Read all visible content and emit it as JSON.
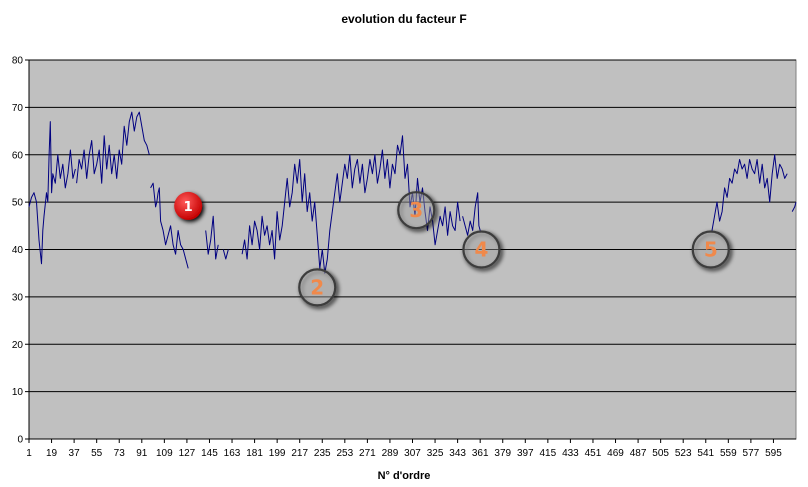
{
  "chart_data": {
    "type": "line",
    "title": "evolution du facteur F",
    "xlabel": "N° d'ordre",
    "ylabel": "",
    "ylim": [
      0,
      80
    ],
    "yticks": [
      0,
      10,
      20,
      30,
      40,
      50,
      60,
      70,
      80
    ],
    "xlim": [
      1,
      613
    ],
    "xticks": [
      1,
      19,
      37,
      55,
      73,
      91,
      109,
      127,
      145,
      163,
      181,
      199,
      217,
      235,
      253,
      271,
      289,
      307,
      325,
      343,
      361,
      379,
      397,
      415,
      433,
      451,
      469,
      487,
      505,
      523,
      541,
      559,
      577,
      595
    ],
    "grid": "horizontal",
    "legend": "none",
    "plot_background": "#c0c0c0",
    "line_color": "#000080",
    "segments": [
      {
        "x": [
          1,
          3,
          5,
          7,
          9,
          11,
          12,
          13,
          15,
          16,
          17,
          18,
          19,
          20,
          22,
          24,
          26,
          28,
          30,
          32,
          34,
          36,
          38
        ],
        "y": [
          49,
          51,
          52,
          50,
          42,
          37,
          44,
          47,
          52,
          50,
          60,
          67,
          52,
          56,
          54,
          60,
          55,
          58,
          53,
          56,
          61,
          55,
          57
        ]
      },
      {
        "x": [
          39,
          41,
          43,
          45,
          47,
          49,
          51,
          53,
          55,
          57,
          59,
          61,
          63,
          65,
          67,
          69,
          71,
          73,
          75,
          77,
          79,
          81,
          83,
          85,
          87,
          89,
          91,
          93,
          95,
          97
        ],
        "y": [
          54,
          59,
          57,
          61,
          55,
          60,
          63,
          56,
          58,
          61,
          54,
          64,
          57,
          62,
          56,
          60,
          55,
          61,
          58,
          66,
          62,
          67,
          69,
          65,
          68,
          69,
          66,
          63,
          62,
          60
        ]
      },
      {
        "x": [
          98,
          100,
          102,
          103,
          104,
          105,
          106,
          108,
          110,
          112,
          114,
          116,
          118,
          120,
          122,
          124,
          126,
          128
        ],
        "y": [
          53,
          54,
          49,
          50,
          52,
          53,
          46,
          44,
          41,
          43,
          45,
          41,
          39,
          44,
          41,
          40,
          38,
          36
        ]
      },
      {
        "x": [
          142,
          144,
          146,
          148,
          150,
          152
        ],
        "y": [
          44,
          39,
          42,
          47,
          38,
          41
        ]
      },
      {
        "x": [
          156,
          158,
          160
        ],
        "y": [
          40,
          38,
          40
        ]
      },
      {
        "x": [
          171,
          173,
          175,
          177,
          179,
          181,
          183,
          185,
          187,
          189,
          191,
          193,
          195,
          197,
          199,
          201,
          203,
          205,
          207,
          209,
          211,
          213,
          215,
          217,
          219,
          221,
          223,
          225,
          227,
          229,
          231,
          233,
          235,
          237,
          239,
          241,
          243,
          245,
          247,
          249,
          251,
          253,
          255,
          257,
          259,
          261,
          263,
          265,
          267,
          269,
          271,
          273,
          275,
          277,
          279,
          281,
          283,
          285,
          287,
          289,
          291,
          293,
          295,
          297,
          299,
          301,
          303,
          305,
          307,
          309,
          311,
          313,
          315,
          317,
          319,
          321,
          323,
          325,
          327,
          329,
          331,
          333,
          335,
          337,
          339,
          341,
          343,
          345
        ],
        "y": [
          39,
          42,
          38,
          45,
          41,
          46,
          44,
          40,
          47,
          43,
          45,
          41,
          44,
          38,
          48,
          42,
          45,
          50,
          55,
          49,
          52,
          58,
          54,
          59,
          50,
          56,
          48,
          52,
          46,
          50,
          43,
          36,
          40,
          35,
          38,
          44,
          48,
          52,
          56,
          50,
          54,
          58,
          55,
          60,
          53,
          57,
          59,
          54,
          58,
          52,
          55,
          59,
          56,
          60,
          54,
          57,
          61,
          55,
          59,
          53,
          58,
          56,
          62,
          60,
          64,
          55,
          58,
          49,
          52,
          47,
          55,
          50,
          53,
          48,
          44,
          49,
          46,
          41,
          44,
          47,
          45,
          49,
          43,
          48,
          45,
          44,
          50,
          46
        ]
      },
      {
        "x": [
          347,
          349,
          351,
          353,
          355,
          357,
          359,
          360,
          361
        ],
        "y": [
          47,
          45,
          43,
          46,
          44,
          49,
          52,
          45,
          44
        ]
      },
      {
        "x": [
          546,
          548,
          550,
          552,
          554,
          556,
          558,
          560,
          562,
          564,
          566,
          568,
          570,
          572,
          574,
          576,
          578,
          580,
          582,
          584,
          586,
          588,
          590,
          592,
          594,
          596,
          598,
          600,
          602,
          604,
          606
        ],
        "y": [
          44,
          47,
          50,
          46,
          48,
          53,
          51,
          55,
          54,
          57,
          56,
          59,
          57,
          58,
          55,
          59,
          57,
          56,
          59,
          54,
          58,
          53,
          55,
          50,
          56,
          60,
          55,
          58,
          57,
          55,
          56
        ]
      },
      {
        "x": [
          610,
          612,
          613
        ],
        "y": [
          48,
          49,
          50
        ]
      }
    ],
    "annotations": [
      {
        "label": "1",
        "x": 128,
        "y": 49.2,
        "style": "red"
      },
      {
        "label": "2",
        "x": 231,
        "y": 32,
        "style": "ring"
      },
      {
        "label": "3",
        "x": 310,
        "y": 48.3,
        "style": "ring"
      },
      {
        "label": "4",
        "x": 362,
        "y": 40,
        "style": "ring"
      },
      {
        "label": "5",
        "x": 545,
        "y": 40,
        "style": "ring"
      }
    ]
  }
}
